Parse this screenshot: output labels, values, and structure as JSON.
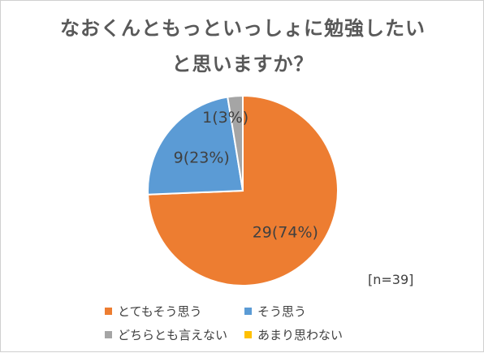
{
  "title_lines": [
    "なおくんともっといっしょに勉強したい",
    "と思いますか？"
  ],
  "note": "[n=39]",
  "chart_data": {
    "type": "pie",
    "categories": [
      "とてもそう思う",
      "そう思う",
      "どちらとも言えない",
      "あまり思わない"
    ],
    "values": [
      29,
      9,
      1,
      0
    ],
    "percentages": [
      74,
      23,
      3,
      0
    ],
    "data_labels": [
      "29(74%)",
      "9(23%)",
      "1(3%)",
      ""
    ],
    "colors": [
      "#ED7D31",
      "#5B9BD5",
      "#A5A5A5",
      "#FFC000"
    ],
    "legend_position": "bottom",
    "n": 39
  }
}
